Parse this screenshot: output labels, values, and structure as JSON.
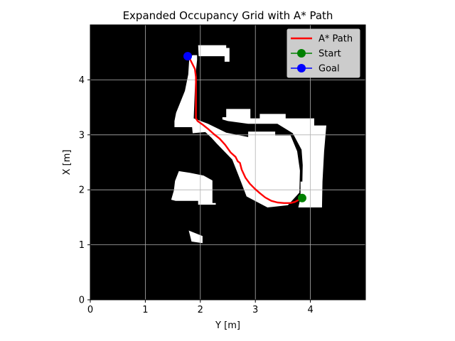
{
  "chart_data": {
    "type": "line",
    "title": "Expanded Occupancy Grid with A* Path",
    "xlabel": "Y [m]",
    "ylabel": "X [m]",
    "xlim": [
      0,
      5
    ],
    "ylim": [
      0,
      5
    ],
    "xticks": [
      0,
      1,
      2,
      3,
      4
    ],
    "yticks": [
      0,
      1,
      2,
      3,
      4
    ],
    "grid": true,
    "legend_position": "top-right",
    "background": "occupancy grid: black = occupied, white = free",
    "free_regions": [
      {
        "points": [
          [
            1.96,
            4.63
          ],
          [
            2.47,
            4.63
          ],
          [
            2.47,
            4.58
          ],
          [
            2.53,
            4.58
          ],
          [
            2.53,
            4.33
          ],
          [
            2.44,
            4.33
          ],
          [
            2.44,
            4.43
          ],
          [
            1.97,
            4.43
          ]
        ]
      },
      {
        "points": [
          [
            1.86,
            4.45
          ],
          [
            1.94,
            4.45
          ],
          [
            1.94,
            4.36
          ],
          [
            1.91,
            4.06
          ],
          [
            1.88,
            3.3
          ],
          [
            2.14,
            3.2
          ],
          [
            2.47,
            3.04
          ],
          [
            2.87,
            2.96
          ],
          [
            2.87,
            3.06
          ],
          [
            3.36,
            3.06
          ],
          [
            3.36,
            2.99
          ],
          [
            3.64,
            2.99
          ],
          [
            3.76,
            2.7
          ],
          [
            3.81,
            2.35
          ],
          [
            3.8,
            1.95
          ],
          [
            3.59,
            1.72
          ],
          [
            3.22,
            1.68
          ],
          [
            2.84,
            1.88
          ],
          [
            2.71,
            2.22
          ],
          [
            2.58,
            2.55
          ],
          [
            2.3,
            2.84
          ],
          [
            2.2,
            2.95
          ],
          [
            2.09,
            3.05
          ],
          [
            1.86,
            3.03
          ],
          [
            1.85,
            3.14
          ],
          [
            1.53,
            3.14
          ],
          [
            1.53,
            3.25
          ],
          [
            1.56,
            3.4
          ],
          [
            1.72,
            3.8
          ],
          [
            1.78,
            4.1
          ],
          [
            1.8,
            4.4
          ]
        ]
      },
      {
        "points": [
          [
            2.4,
            3.32
          ],
          [
            2.47,
            3.32
          ],
          [
            2.47,
            3.47
          ],
          [
            2.91,
            3.47
          ],
          [
            2.91,
            3.3
          ],
          [
            3.08,
            3.3
          ],
          [
            3.08,
            3.38
          ],
          [
            3.55,
            3.38
          ],
          [
            3.55,
            3.3
          ],
          [
            4.07,
            3.3
          ],
          [
            4.07,
            3.17
          ],
          [
            4.29,
            3.17
          ],
          [
            4.25,
            2.7
          ],
          [
            4.22,
            2.15
          ],
          [
            4.21,
            1.68
          ],
          [
            3.78,
            1.68
          ],
          [
            3.85,
            1.98
          ],
          [
            3.86,
            2.45
          ],
          [
            3.84,
            2.73
          ],
          [
            3.68,
            3.03
          ],
          [
            3.4,
            3.2
          ],
          [
            2.87,
            3.2
          ],
          [
            2.5,
            3.25
          ],
          [
            2.4,
            3.28
          ]
        ]
      },
      {
        "points": [
          [
            3.82,
            2.15
          ],
          [
            4.11,
            2.15
          ],
          [
            4.11,
            1.84
          ],
          [
            3.82,
            1.84
          ]
        ]
      },
      {
        "points": [
          [
            1.47,
            1.82
          ],
          [
            1.52,
            1.99
          ],
          [
            1.54,
            2.16
          ],
          [
            1.61,
            2.34
          ],
          [
            1.81,
            2.31
          ],
          [
            2.06,
            2.26
          ],
          [
            2.22,
            2.17
          ],
          [
            2.22,
            1.76
          ],
          [
            2.28,
            1.76
          ],
          [
            2.28,
            1.73
          ],
          [
            1.96,
            1.73
          ],
          [
            1.96,
            1.8
          ],
          [
            1.55,
            1.8
          ]
        ]
      },
      {
        "points": [
          [
            1.79,
            1.26
          ],
          [
            2.04,
            1.16
          ],
          [
            2.04,
            1.03
          ],
          [
            1.84,
            1.06
          ],
          [
            1.81,
            1.18
          ]
        ]
      }
    ],
    "series": [
      {
        "name": "A* Path",
        "color": "#ff0000",
        "x": [
          3.85,
          3.72,
          3.64,
          3.52,
          3.4,
          3.29,
          3.18,
          3.08,
          2.99,
          2.9,
          2.82,
          2.75,
          2.72,
          2.68,
          2.64,
          2.55,
          2.45,
          2.35,
          2.25,
          2.15,
          2.05,
          1.95,
          1.92,
          1.92,
          1.92,
          1.92,
          1.92,
          1.9,
          1.85,
          1.8,
          1.77
        ],
        "y": [
          1.85,
          1.78,
          1.76,
          1.76,
          1.77,
          1.8,
          1.86,
          1.94,
          2.02,
          2.11,
          2.22,
          2.37,
          2.49,
          2.52,
          2.6,
          2.68,
          2.82,
          2.93,
          3.01,
          3.1,
          3.18,
          3.25,
          3.3,
          3.4,
          3.6,
          3.8,
          4.05,
          4.2,
          4.3,
          4.4,
          4.43
        ]
      },
      {
        "name": "Start",
        "color": "#008000",
        "x": [
          3.85
        ],
        "y": [
          1.85
        ]
      },
      {
        "name": "Goal",
        "color": "#0000ff",
        "x": [
          1.77
        ],
        "y": [
          4.43
        ]
      }
    ]
  }
}
